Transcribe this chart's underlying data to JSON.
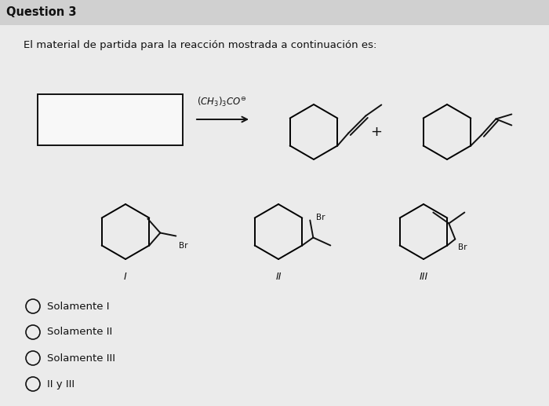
{
  "title": "Question 3",
  "question_text": "El material de partida para la reacción mostrada a continuación es:",
  "options": [
    "Solamente I",
    "Solamente II",
    "Solamente III",
    "II y III"
  ],
  "bg_color": "#ebebeb",
  "header_color": "#d0d0d0",
  "text_color": "#111111",
  "title_color": "#111111",
  "box_color": "#f8f8f8",
  "line_color": "#111111",
  "figsize": [
    7.0,
    5.17
  ],
  "dpi": 100
}
